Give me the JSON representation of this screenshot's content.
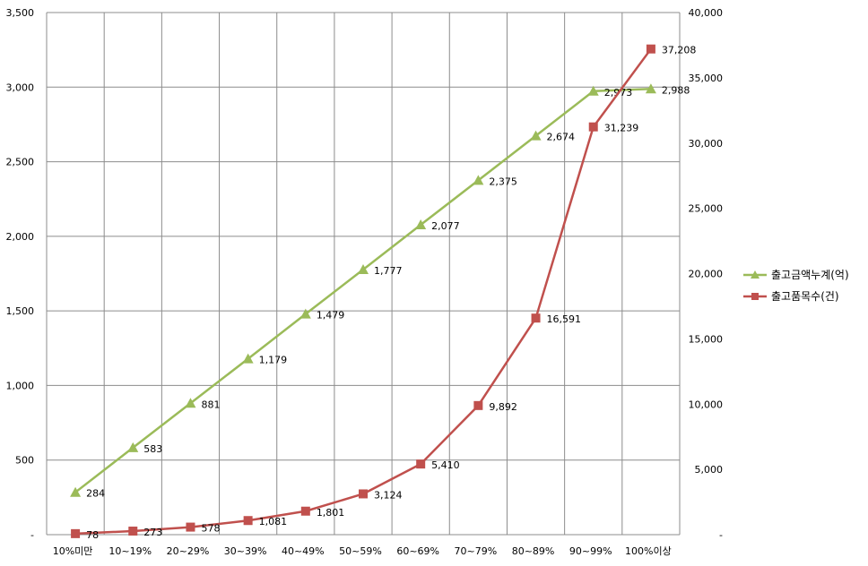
{
  "chart_data": {
    "type": "line",
    "categories": [
      "10%미만",
      "10~19%",
      "20~29%",
      "30~39%",
      "40~49%",
      "50~59%",
      "60~69%",
      "70~79%",
      "80~89%",
      "90~99%",
      "100%이상"
    ],
    "series": [
      {
        "name": "출고금액누계(억)",
        "axis": "left",
        "color": "#9bbb59",
        "marker": "triangle",
        "values": [
          284,
          583,
          881,
          1179,
          1479,
          1777,
          2077,
          2375,
          2674,
          2973,
          2988
        ],
        "labels": [
          "284",
          "583",
          "881",
          "1,179",
          "1,479",
          "1,777",
          "2,077",
          "2,375",
          "2,674",
          "2,973",
          "2,988"
        ]
      },
      {
        "name": "출고품목수(건)",
        "axis": "right",
        "color": "#c0504d",
        "marker": "square",
        "values": [
          78,
          273,
          578,
          1081,
          1801,
          3124,
          5410,
          9892,
          16591,
          31239,
          37208
        ],
        "labels": [
          "78",
          "273",
          "578",
          "1,081",
          "1,801",
          "3,124",
          "5,410",
          "9,892",
          "16,591",
          "31,239",
          "37,208"
        ]
      }
    ],
    "left_axis": {
      "ylim": [
        0,
        3500
      ],
      "ticks": [
        0,
        500,
        1000,
        1500,
        2000,
        2500,
        3000,
        3500
      ],
      "tick_labels": [
        "-",
        "500",
        "1,000",
        "1,500",
        "2,000",
        "2,500",
        "3,000",
        "3,500"
      ]
    },
    "right_axis": {
      "ylim": [
        0,
        40000
      ],
      "ticks": [
        0,
        5000,
        10000,
        15000,
        20000,
        25000,
        30000,
        35000,
        40000
      ],
      "tick_labels": [
        "-",
        "5,000",
        "10,000",
        "15,000",
        "20,000",
        "25,000",
        "30,000",
        "35,000",
        "40,000"
      ]
    },
    "grid": true,
    "legend_position": "right"
  }
}
